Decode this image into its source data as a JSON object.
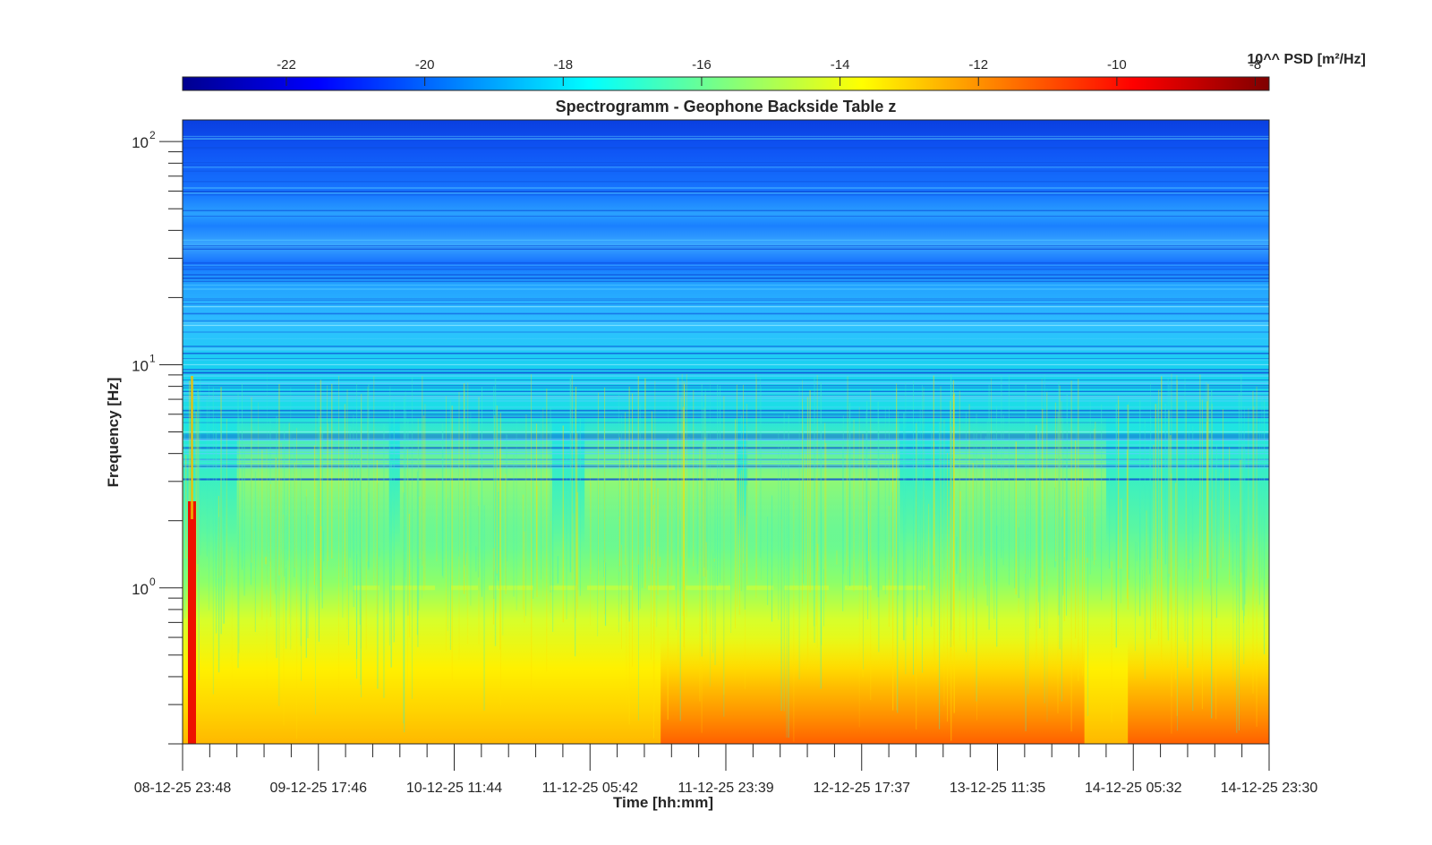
{
  "chart_data": {
    "type": "heatmap",
    "title": "Spectrogramm - Geophone Backside Table z",
    "xlabel": "Time [hh:mm]",
    "ylabel": "Frequency [Hz]",
    "x_ticks": [
      "08-12-25 23:48",
      "09-12-25 17:46",
      "10-12-25 11:44",
      "11-12-25 05:42",
      "11-12-25 23:39",
      "12-12-25 17:37",
      "13-12-25 11:35",
      "14-12-25 05:32",
      "14-12-25 23:30"
    ],
    "y_scale": "log",
    "y_range_hz": [
      0.2,
      125
    ],
    "y_ticks": [
      {
        "value": 1,
        "label": "10",
        "exp": "0"
      },
      {
        "value": 10,
        "label": "10",
        "exp": "1"
      },
      {
        "value": 100,
        "label": "10",
        "exp": "2"
      }
    ],
    "colorbar": {
      "label": "10^^ PSD [m²/Hz]",
      "range": [
        -23.5,
        -7.8
      ],
      "ticks": [
        "-22",
        "-20",
        "-18",
        "-16",
        "-14",
        "-12",
        "-10",
        "-8"
      ],
      "tick_values": [
        -22,
        -20,
        -18,
        -16,
        -14,
        -12,
        -10,
        -8
      ],
      "colormap": "jet"
    },
    "psd_by_frequency_band": [
      {
        "freq_hz": 125,
        "log_psd": -21.0
      },
      {
        "freq_hz": 90,
        "log_psd": -20.3
      },
      {
        "freq_hz": 50,
        "log_psd": -19.5
      },
      {
        "freq_hz": 30,
        "log_psd": -19.6
      },
      {
        "freq_hz": 20,
        "log_psd": -18.5
      },
      {
        "freq_hz": 12,
        "log_psd": -17.8
      },
      {
        "freq_hz": 8,
        "log_psd": -17.6
      },
      {
        "freq_hz": 5,
        "log_psd": -17.3
      },
      {
        "freq_hz": 3,
        "log_psd": -16.6
      },
      {
        "freq_hz": 1.5,
        "log_psd": -16.3
      },
      {
        "freq_hz": 1,
        "log_psd": -15.9
      },
      {
        "freq_hz": 0.6,
        "log_psd": -14.5
      },
      {
        "freq_hz": 0.4,
        "log_psd": -13.4
      },
      {
        "freq_hz": 0.2,
        "log_psd": -12.7
      }
    ]
  }
}
